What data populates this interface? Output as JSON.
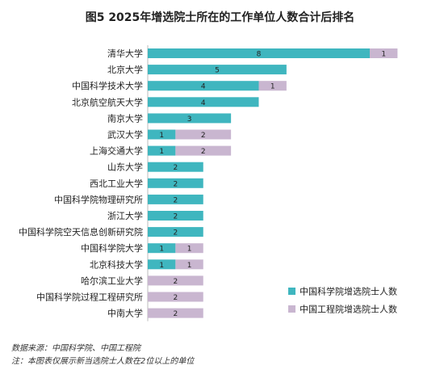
{
  "chart_data": {
    "type": "bar",
    "orientation": "horizontal",
    "stacked": true,
    "title": "图5  2025年增选院士所在的工作单位人数合计后排名",
    "categories": [
      "清华大学",
      "北京大学",
      "中国科学技术大学",
      "北京航空航天大学",
      "南京大学",
      "武汉大学",
      "上海交通大学",
      "山东大学",
      "西北工业大学",
      "中国科学院物理研究所",
      "浙江大学",
      "中国科学院空天信息创新研究院",
      "中国科学院大学",
      "北京科技大学",
      "哈尔滨工业大学",
      "中国科学院过程工程研究所",
      "中南大学"
    ],
    "series": [
      {
        "name": "中国科学院增选院士人数",
        "color": "#3fb6bf",
        "values": [
          8,
          5,
          4,
          4,
          3,
          1,
          1,
          2,
          2,
          2,
          2,
          2,
          1,
          1,
          0,
          0,
          0
        ]
      },
      {
        "name": "中国工程院增选院士人数",
        "color": "#c9b6d0",
        "values": [
          1,
          0,
          1,
          0,
          0,
          2,
          2,
          0,
          0,
          0,
          0,
          0,
          1,
          1,
          2,
          2,
          2
        ]
      }
    ],
    "xlim": [
      0,
      9.6
    ],
    "grid": false,
    "legend_position": "bottom-right"
  },
  "notes": {
    "source": "数据来源：中国科学院、中国工程院",
    "footnote": "注：本图表仅展示新当选院士人数在2位以上的单位"
  }
}
